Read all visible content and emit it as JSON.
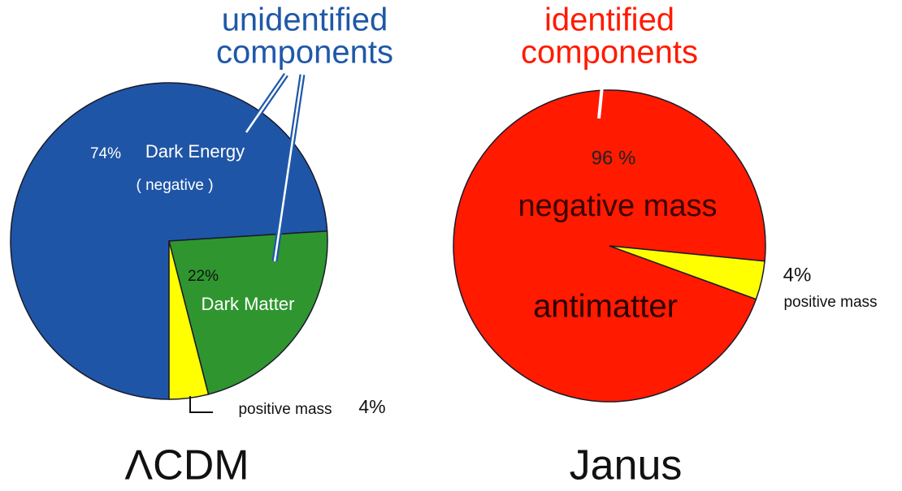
{
  "chart_data": [
    {
      "type": "pie",
      "title": "ΛCDM",
      "annotation": [
        "unidentified",
        "components"
      ],
      "annotation_color": "#1f58a8",
      "categories": [
        "Dark Energy",
        "Dark Matter",
        "positive mass"
      ],
      "category_sublabels": [
        "( negative )",
        null,
        null
      ],
      "values": [
        74,
        22,
        4
      ],
      "value_labels": [
        "74%",
        "22%",
        "4%"
      ],
      "colors": [
        "#1f55a6",
        "#2f962f",
        "#ffff00"
      ]
    },
    {
      "type": "pie",
      "title": "Janus",
      "annotation": [
        "identified",
        "components"
      ],
      "annotation_color": "#ff1a00",
      "categories": [
        "negative mass",
        "positive mass"
      ],
      "category_sublabels": [
        "antimatter",
        null
      ],
      "values": [
        96,
        4
      ],
      "value_labels": [
        "96 %",
        "4%"
      ],
      "colors": [
        "#ff1a00",
        "#ffff00"
      ]
    }
  ]
}
